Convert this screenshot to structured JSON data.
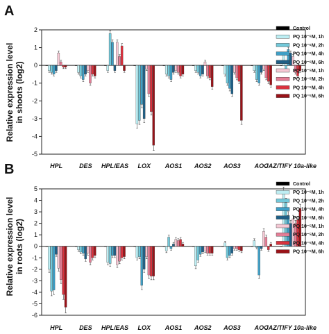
{
  "colors": [
    "#000000",
    "#bdeef3",
    "#72c9da",
    "#3f9fc6",
    "#1f5f86",
    "#f6c8d4",
    "#e47e96",
    "#d8323e",
    "#9a1218"
  ],
  "chart_data": [
    {
      "type": "bar",
      "panel": "A",
      "ylabel": [
        "Relative expression level",
        "in shoots (log2)"
      ],
      "ylim": [
        -5,
        2
      ],
      "yticks": [
        -5,
        -4,
        -3,
        -2,
        -1,
        0,
        1,
        2
      ],
      "categories": [
        "HPL",
        "DES",
        "HPL/EAS",
        "LOX",
        "AOS1",
        "AOS2",
        "AOS3",
        "AOC",
        "JAZ/TIFY 10a-like"
      ],
      "legend_position": "top-right",
      "series": [
        {
          "name": "Control",
          "values": [
            0,
            0,
            0,
            0,
            0,
            0,
            0,
            0,
            0
          ]
        },
        {
          "name": "PQ 10⁻⁶M, 1h",
          "values": [
            -0.3,
            -0.4,
            -0.3,
            -3.3,
            -0.5,
            -0.3,
            -0.5,
            -0.3,
            0.6
          ]
        },
        {
          "name": "PQ 10⁻⁶M, 2h",
          "values": [
            -0.4,
            -0.6,
            1.8,
            -3.1,
            -0.6,
            -0.4,
            -1.0,
            -0.8,
            -0.2
          ]
        },
        {
          "name": "PQ 10⁻⁶M, 4h",
          "values": [
            -0.5,
            -0.8,
            1.3,
            -2.2,
            -0.8,
            -0.6,
            -1.3,
            -1.0,
            0.9
          ]
        },
        {
          "name": "PQ 10⁻⁶M, 6h",
          "values": [
            -0.3,
            -0.5,
            -0.3,
            -3.0,
            -0.4,
            -0.5,
            -1.6,
            -0.4,
            0.7
          ]
        },
        {
          "name": "PQ 10⁻⁵M, 1h",
          "values": [
            0.7,
            -0.3,
            1.3,
            -0.2,
            -0.3,
            0.2,
            -0.4,
            -0.2,
            0.5
          ]
        },
        {
          "name": "PQ 10⁻⁵M, 2h",
          "values": [
            0.2,
            -1.0,
            0.5,
            -1.6,
            -0.4,
            -0.6,
            -0.7,
            -0.7,
            -0.4
          ]
        },
        {
          "name": "PQ 10⁻⁵M, 4h",
          "values": [
            -0.1,
            -0.5,
            1.1,
            -2.6,
            -0.6,
            -0.7,
            -0.9,
            -0.9,
            -0.6
          ]
        },
        {
          "name": "PQ 10⁻⁵M, 6h",
          "values": [
            -0.1,
            -0.6,
            -0.3,
            -4.5,
            -0.5,
            -1.2,
            -3.1,
            -1.1,
            -0.3
          ]
        }
      ]
    },
    {
      "type": "bar",
      "panel": "B",
      "ylabel": [
        "Relative expression level",
        "in roots (log2)"
      ],
      "ylim": [
        -6,
        5
      ],
      "yticks": [
        -6,
        -5,
        -4,
        -3,
        -2,
        -1,
        0,
        1,
        2,
        3,
        4,
        5
      ],
      "categories": [
        "HPL",
        "DES",
        "HPL/EAS",
        "LOX",
        "AOS1",
        "AOS2",
        "AOS3",
        "AOC",
        "JAZ/TIFY 10a-like"
      ],
      "legend_position": "top-right",
      "series": [
        {
          "name": "Control",
          "values": [
            0,
            0,
            0,
            0,
            0,
            0,
            0,
            0,
            0
          ]
        },
        {
          "name": "PQ 10⁻⁶M, 1h",
          "values": [
            -2.0,
            -0.3,
            -1.4,
            -1.0,
            -0.4,
            -1.7,
            0.3,
            0.5,
            4.7
          ]
        },
        {
          "name": "PQ 10⁻⁶M, 2h",
          "values": [
            -3.9,
            -0.5,
            -1.5,
            -0.9,
            0.8,
            -1.2,
            -1.0,
            -0.1,
            3.8
          ]
        },
        {
          "name": "PQ 10⁻⁶M, 4h",
          "values": [
            -3.8,
            -0.6,
            -0.8,
            -3.4,
            -0.2,
            -0.7,
            -0.8,
            -2.5,
            2.7
          ]
        },
        {
          "name": "PQ 10⁻⁶M, 6h",
          "values": [
            -0.7,
            -1.1,
            -0.8,
            -2.0,
            0.2,
            -0.5,
            -0.6,
            -0.2,
            2.0
          ]
        },
        {
          "name": "PQ 10⁻⁵M, 1h",
          "values": [
            -1.9,
            -0.6,
            -1.6,
            -0.9,
            0.6,
            -0.4,
            -0.2,
            1.3,
            2.4
          ]
        },
        {
          "name": "PQ 10⁻⁵M, 2h",
          "values": [
            -2.9,
            -1.4,
            -1.3,
            -2.5,
            0.5,
            -0.6,
            -0.2,
            0.8,
            2.0
          ]
        },
        {
          "name": "PQ 10⁻⁵M, 4h",
          "values": [
            -4.2,
            -1.0,
            -1.0,
            -2.6,
            0.6,
            -0.6,
            -0.3,
            -0.3,
            2.3
          ]
        },
        {
          "name": "PQ 10⁻⁵M, 6h",
          "values": [
            -5.3,
            -0.8,
            -0.9,
            -2.6,
            0.2,
            -0.6,
            -0.4,
            0.2,
            3.3
          ]
        }
      ]
    }
  ]
}
